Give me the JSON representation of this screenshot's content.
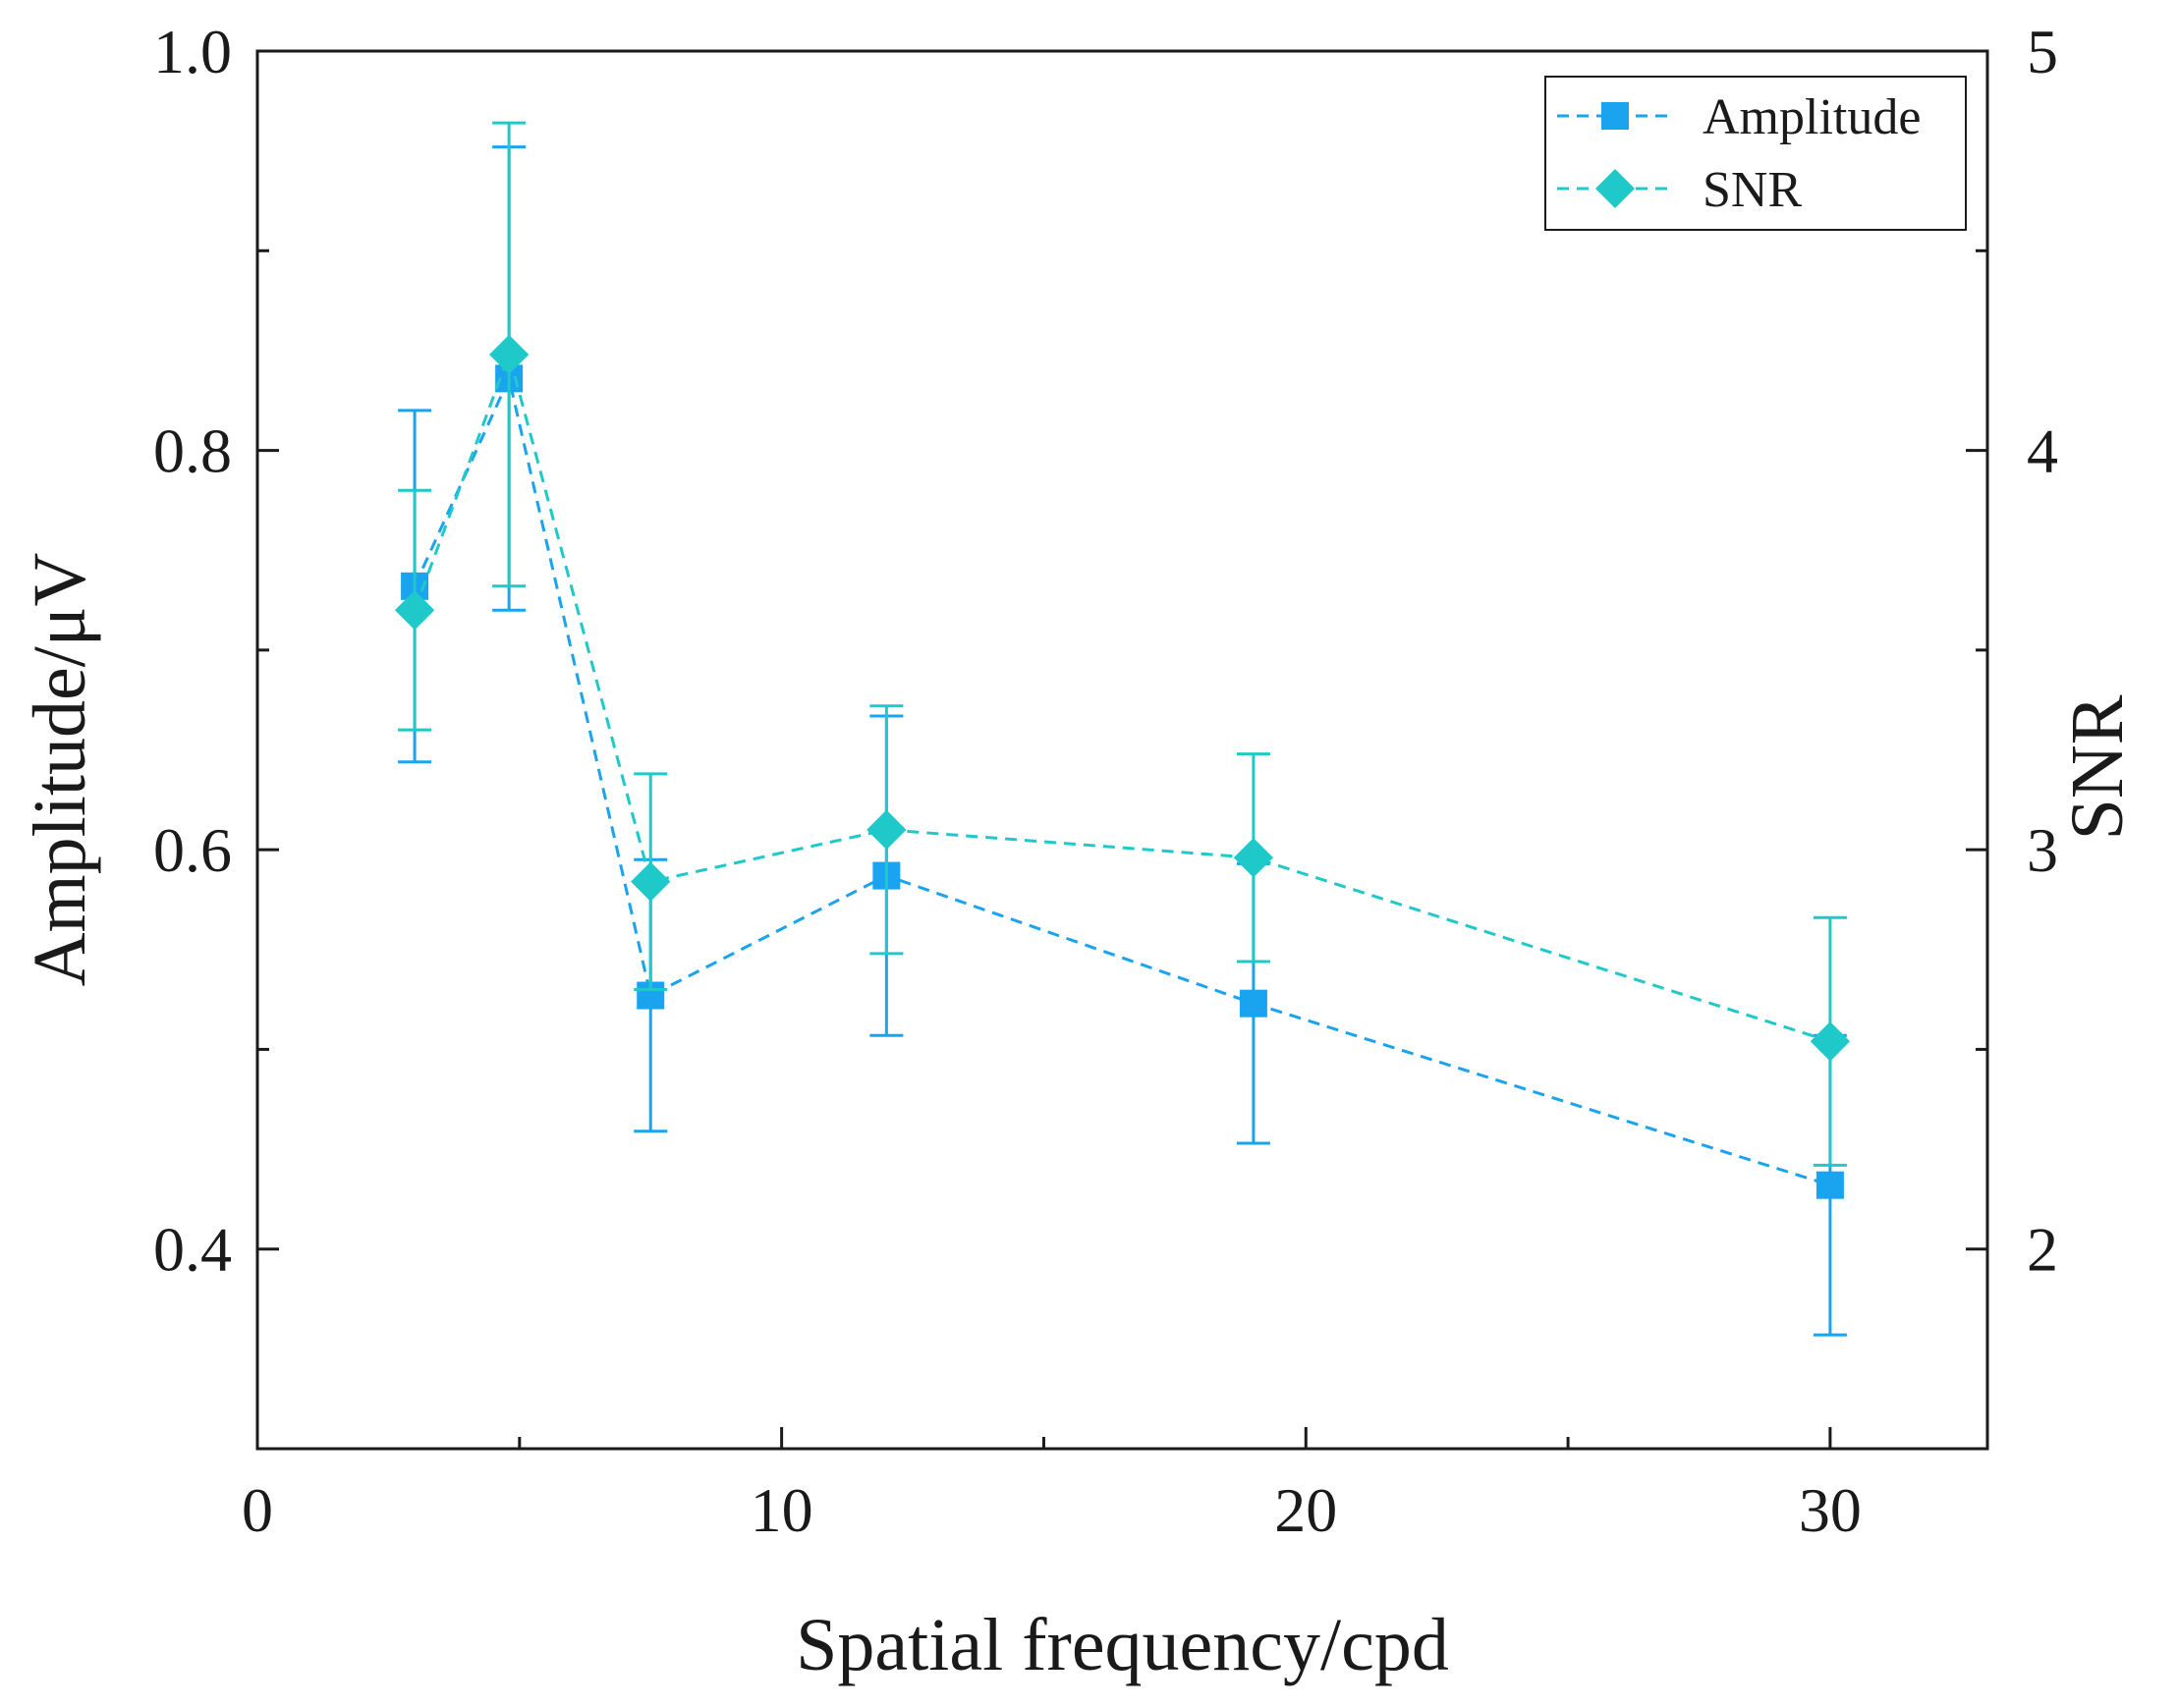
{
  "chart_data": {
    "type": "line",
    "title": "",
    "xlabel": "Spatial frequency/cpd",
    "ylabel": "Amplitude/μV",
    "y2label": "SNR",
    "xlim": [
      0,
      33
    ],
    "ylim": [
      0.3,
      1.0
    ],
    "y2lim": [
      1.5,
      5.0
    ],
    "x_ticks": [
      0,
      10,
      20,
      30
    ],
    "x_minor_ticks": [
      5,
      15,
      25
    ],
    "y_ticks": [
      0.4,
      0.6,
      0.8,
      1.0
    ],
    "y_tick_labels": [
      "0.4",
      "0.6",
      "0.8",
      "1.0"
    ],
    "y_minor_ticks": [
      0.5,
      0.7,
      0.9
    ],
    "y2_ticks": [
      2,
      3,
      4,
      5
    ],
    "y2_tick_labels": [
      "2",
      "3",
      "4",
      "5"
    ],
    "y2_minor_ticks": [
      2.5,
      3.5,
      4.5
    ],
    "grid": false,
    "legend_position": "top-right",
    "series": [
      {
        "name": "Amplitude",
        "axis": "left",
        "marker": "square",
        "color": "#1aa3ef",
        "x": [
          3,
          4.8,
          7.5,
          12,
          19,
          30
        ],
        "values": [
          0.732,
          0.836,
          0.527,
          0.587,
          0.523,
          0.432
        ],
        "errors": [
          0.088,
          0.116,
          0.068,
          0.08,
          0.07,
          0.075
        ]
      },
      {
        "name": "SNR",
        "axis": "right",
        "marker": "diamond",
        "color": "#20c9c9",
        "x": [
          3,
          4.8,
          7.5,
          12,
          19,
          30
        ],
        "values": [
          3.6,
          4.24,
          2.92,
          3.05,
          2.98,
          2.52
        ],
        "errors": [
          0.3,
          0.58,
          0.27,
          0.31,
          0.26,
          0.31
        ]
      }
    ]
  }
}
